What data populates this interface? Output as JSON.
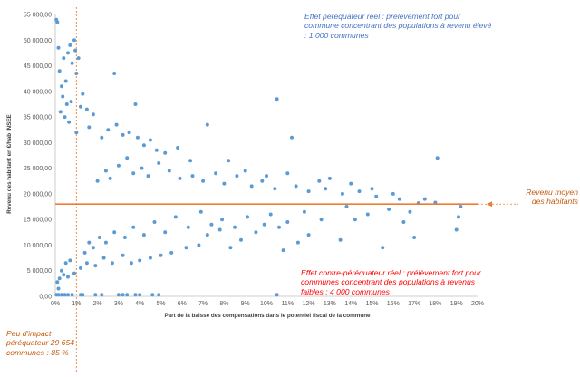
{
  "chart_data": {
    "type": "scatter",
    "title": "",
    "xlabel": "Part de la baisse des compensations dans le potentiel fiscal de la commune",
    "ylabel": "Revenu des habitant en €/hab INSEE",
    "xlim": [
      0,
      20
    ],
    "ylim": [
      0,
      55000
    ],
    "x_ticks": [
      "0%",
      "1%",
      "2%",
      "3%",
      "4%",
      "5%",
      "6%",
      "7%",
      "8%",
      "9%",
      "10%",
      "11%",
      "12%",
      "13%",
      "14%",
      "15%",
      "16%",
      "17%",
      "18%",
      "19%",
      "20%"
    ],
    "y_ticks": [
      "0,00",
      "5 000,00",
      "10 000,00",
      "15 000,00",
      "20 000,00",
      "25 000,00",
      "30 000,00",
      "35 000,00",
      "40 000,00",
      "45 000,00",
      "50 000,00",
      "55 000,00"
    ],
    "grid": false,
    "legend": "none",
    "reference_lines": {
      "mean_revenue_y": 18000,
      "low_impact_x": 1
    },
    "points": [
      [
        0.05,
        54000
      ],
      [
        0.1,
        53500
      ],
      [
        0.15,
        48500
      ],
      [
        0.3,
        41000
      ],
      [
        0.4,
        46500
      ],
      [
        0.5,
        42000
      ],
      [
        0.2,
        44000
      ],
      [
        0.7,
        49000
      ],
      [
        0.6,
        47500
      ],
      [
        0.8,
        45500
      ],
      [
        0.9,
        50000
      ],
      [
        0.95,
        48000
      ],
      [
        1.0,
        43500
      ],
      [
        1.1,
        46500
      ],
      [
        0.35,
        39000
      ],
      [
        0.55,
        37500
      ],
      [
        0.25,
        36000
      ],
      [
        0.45,
        35000
      ],
      [
        0.75,
        38000
      ],
      [
        0.65,
        34000
      ],
      [
        1.2,
        37000
      ],
      [
        1.3,
        39500
      ],
      [
        1.5,
        36500
      ],
      [
        1.8,
        35500
      ],
      [
        2.8,
        43500
      ],
      [
        3.8,
        37500
      ],
      [
        1.0,
        32000
      ],
      [
        1.6,
        33000
      ],
      [
        2.2,
        31000
      ],
      [
        2.5,
        32500
      ],
      [
        2.9,
        33500
      ],
      [
        3.2,
        31500
      ],
      [
        3.5,
        32000
      ],
      [
        3.9,
        31000
      ],
      [
        4.2,
        29500
      ],
      [
        4.5,
        30500
      ],
      [
        4.8,
        28500
      ],
      [
        5.2,
        28000
      ],
      [
        5.8,
        29000
      ],
      [
        6.4,
        26500
      ],
      [
        7.2,
        33500
      ],
      [
        8.2,
        26500
      ],
      [
        10.5,
        38500
      ],
      [
        11.2,
        31000
      ],
      [
        9.0,
        24500
      ],
      [
        10.0,
        23500
      ],
      [
        11.0,
        24000
      ],
      [
        12.5,
        22500
      ],
      [
        13.0,
        23000
      ],
      [
        14.0,
        22000
      ],
      [
        15.0,
        21000
      ],
      [
        16.0,
        20000
      ],
      [
        17.5,
        19000
      ],
      [
        18.1,
        27000
      ],
      [
        18.0,
        18300
      ],
      [
        19.2,
        17500
      ],
      [
        19.1,
        15500
      ],
      [
        19.0,
        13000
      ],
      [
        17.0,
        11500
      ],
      [
        16.5,
        14500
      ],
      [
        15.5,
        9500
      ],
      [
        14.2,
        15000
      ],
      [
        13.5,
        11000
      ],
      [
        12.0,
        12000
      ],
      [
        11.5,
        10500
      ],
      [
        10.8,
        9000
      ],
      [
        10.2,
        16000
      ],
      [
        9.5,
        12500
      ],
      [
        8.8,
        11000
      ],
      [
        8.3,
        9500
      ],
      [
        7.8,
        13000
      ],
      [
        7.2,
        12000
      ],
      [
        6.8,
        10000
      ],
      [
        6.2,
        9500
      ],
      [
        5.5,
        8500
      ],
      [
        5.0,
        8000
      ],
      [
        4.5,
        7500
      ],
      [
        4.0,
        7000
      ],
      [
        3.6,
        6500
      ],
      [
        3.2,
        8000
      ],
      [
        2.7,
        6500
      ],
      [
        2.3,
        7500
      ],
      [
        1.9,
        6000
      ],
      [
        1.5,
        6500
      ],
      [
        1.2,
        5500
      ],
      [
        0.9,
        4500
      ],
      [
        0.6,
        3800
      ],
      [
        0.4,
        4200
      ],
      [
        0.2,
        3500
      ],
      [
        0.1,
        2800
      ],
      [
        0.15,
        1500
      ],
      [
        0.3,
        5000
      ],
      [
        0.5,
        6500
      ],
      [
        0.7,
        7000
      ],
      [
        0.05,
        300
      ],
      [
        0.15,
        300
      ],
      [
        0.3,
        300
      ],
      [
        0.45,
        300
      ],
      [
        0.6,
        300
      ],
      [
        0.8,
        300
      ],
      [
        1.2,
        300
      ],
      [
        1.3,
        300
      ],
      [
        1.9,
        300
      ],
      [
        2.2,
        300
      ],
      [
        3.0,
        300
      ],
      [
        3.2,
        300
      ],
      [
        3.4,
        300
      ],
      [
        3.8,
        300
      ],
      [
        4.0,
        300
      ],
      [
        4.6,
        300
      ],
      [
        4.9,
        300
      ],
      [
        10.5,
        300
      ],
      [
        2.0,
        22500
      ],
      [
        2.4,
        24500
      ],
      [
        2.6,
        23000
      ],
      [
        3.0,
        25500
      ],
      [
        3.4,
        27000
      ],
      [
        3.7,
        24000
      ],
      [
        4.1,
        25000
      ],
      [
        4.4,
        23500
      ],
      [
        4.9,
        26000
      ],
      [
        5.4,
        24500
      ],
      [
        5.9,
        23000
      ],
      [
        6.5,
        23500
      ],
      [
        7.0,
        22500
      ],
      [
        7.6,
        24000
      ],
      [
        8.0,
        22000
      ],
      [
        8.6,
        23500
      ],
      [
        9.3,
        21500
      ],
      [
        9.8,
        22500
      ],
      [
        10.4,
        21000
      ],
      [
        11.4,
        21500
      ],
      [
        12.0,
        20500
      ],
      [
        12.8,
        21000
      ],
      [
        13.6,
        20000
      ],
      [
        14.4,
        20500
      ],
      [
        15.2,
        19500
      ],
      [
        16.3,
        19000
      ],
      [
        17.2,
        18200
      ],
      [
        15.8,
        17000
      ],
      [
        16.8,
        16500
      ],
      [
        14.8,
        16000
      ],
      [
        13.8,
        17500
      ],
      [
        12.6,
        15000
      ],
      [
        11.8,
        16500
      ],
      [
        11.0,
        14500
      ],
      [
        10.6,
        13500
      ],
      [
        9.9,
        14000
      ],
      [
        9.1,
        15500
      ],
      [
        8.5,
        13500
      ],
      [
        7.9,
        15000
      ],
      [
        7.4,
        14000
      ],
      [
        6.9,
        16500
      ],
      [
        6.3,
        13500
      ],
      [
        5.7,
        15500
      ],
      [
        5.2,
        12500
      ],
      [
        4.7,
        14500
      ],
      [
        4.2,
        12000
      ],
      [
        3.7,
        13500
      ],
      [
        3.3,
        11500
      ],
      [
        2.8,
        12500
      ],
      [
        2.4,
        10500
      ],
      [
        2.1,
        11500
      ],
      [
        1.8,
        9500
      ],
      [
        1.6,
        10500
      ],
      [
        1.4,
        8500
      ]
    ]
  },
  "annotations": {
    "high_income_note": "Effet péréquateur réel : prélèvement fort pour commune concentrant des populations à revenu élevé : 1 000 communes",
    "low_income_note": "Effet contre-péréquateur réel : prélèvement fort pour communes concentrant des populations à revenus faibles : 4 000 communes",
    "mean_revenue_note": "Revenu moyen des habitants",
    "low_impact_note": "Peu d'impact péréquateur 29 654 communes : 85 %"
  },
  "colors": {
    "points": "#5b9bd5",
    "mean_line": "#ed7d31",
    "low_impact_line": "#ed7d31",
    "high_income_text": "#4472c4",
    "low_income_text": "#ff0000",
    "orange_text": "#c55a11"
  }
}
